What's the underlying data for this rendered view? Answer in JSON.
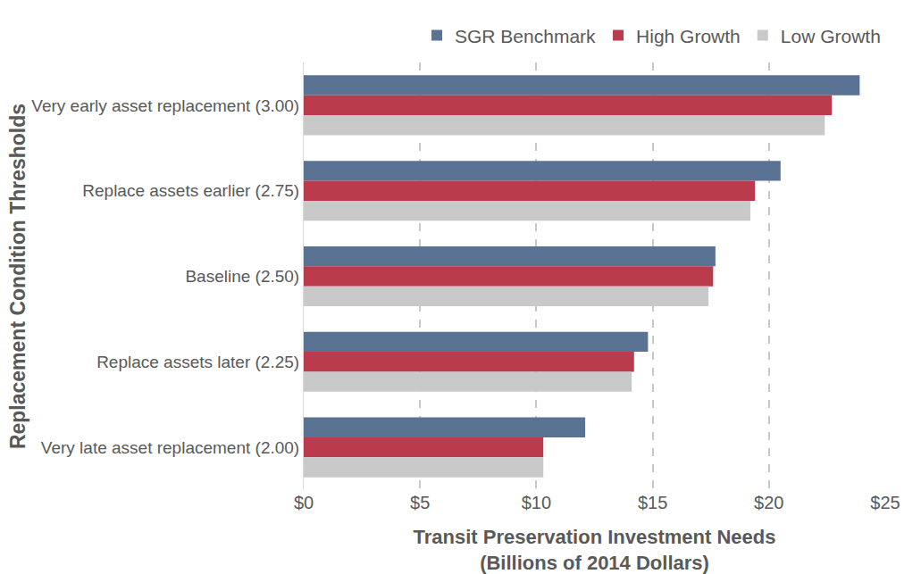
{
  "chart_data": {
    "type": "bar",
    "orientation": "horizontal",
    "x_label": "Transit Preservation Investment Needs\n(Billions of 2014 Dollars)",
    "y_label": "Replacement Condition Thresholds",
    "categories": [
      "Very early asset replacement (3.00)",
      "Replace assets earlier (2.75)",
      "Baseline (2.50)",
      "Replace assets later (2.25)",
      "Very late asset replacement (2.00)"
    ],
    "series": [
      {
        "name": "SGR Benchmark",
        "color": "#5b7393",
        "values": [
          23.9,
          20.5,
          17.7,
          14.8,
          12.1
        ]
      },
      {
        "name": "High Growth",
        "color": "#b93b4c",
        "values": [
          22.7,
          19.4,
          17.6,
          14.2,
          10.3
        ]
      },
      {
        "name": "Low Growth",
        "color": "#c9c9c9",
        "values": [
          22.4,
          19.2,
          17.4,
          14.1,
          10.3
        ]
      }
    ],
    "xlim": [
      0,
      25
    ],
    "xticks": [
      {
        "value": 0,
        "label": "$0"
      },
      {
        "value": 5,
        "label": "$5"
      },
      {
        "value": 10,
        "label": "$10"
      },
      {
        "value": 15,
        "label": "$15"
      },
      {
        "value": 20,
        "label": "$20"
      },
      {
        "value": 25,
        "label": "$25"
      }
    ],
    "grid": true,
    "legend": "top"
  }
}
